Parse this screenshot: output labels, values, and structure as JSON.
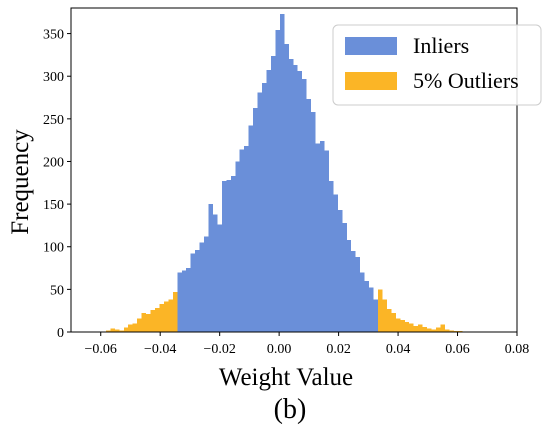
{
  "chart_data": {
    "type": "bar",
    "xlabel": "Weight Value",
    "ylabel": "Frequency",
    "caption": "(b)",
    "xlim": [
      -0.07,
      0.08
    ],
    "ylim": [
      0,
      380
    ],
    "xticks": [
      "−0.06",
      "−0.04",
      "−0.02",
      "0.00",
      "0.02",
      "0.04",
      "0.06",
      "0.08"
    ],
    "xtick_values": [
      -0.06,
      -0.04,
      -0.02,
      0.0,
      0.02,
      0.04,
      0.06,
      0.08
    ],
    "yticks": [
      "0",
      "50",
      "100",
      "150",
      "200",
      "250",
      "300",
      "350"
    ],
    "ytick_values": [
      0,
      50,
      100,
      150,
      200,
      250,
      300,
      350
    ],
    "grid": false,
    "legend_position": "top-right",
    "bin_width": 0.0015,
    "series": [
      {
        "name": "Inliers",
        "color": "#6a8fd9",
        "bin_centers": [
          -0.0335,
          -0.032,
          -0.0305,
          -0.029,
          -0.0275,
          -0.026,
          -0.0245,
          -0.023,
          -0.0215,
          -0.02,
          -0.0185,
          -0.017,
          -0.0155,
          -0.014,
          -0.0125,
          -0.011,
          -0.0095,
          -0.008,
          -0.0065,
          -0.005,
          -0.0035,
          -0.002,
          -0.0005,
          0.001,
          0.0025,
          0.004,
          0.0055,
          0.007,
          0.0085,
          0.01,
          0.0115,
          0.013,
          0.0145,
          0.016,
          0.0175,
          0.019,
          0.0205,
          0.022,
          0.0235,
          0.025,
          0.0265,
          0.028,
          0.0295,
          0.031,
          0.0325
        ],
        "values": [
          70,
          72,
          75,
          92,
          96,
          105,
          112,
          150,
          138,
          126,
          177,
          178,
          183,
          200,
          214,
          218,
          242,
          263,
          281,
          292,
          307,
          324,
          354,
          373,
          338,
          320,
          313,
          306,
          297,
          273,
          258,
          221,
          224,
          213,
          177,
          161,
          143,
          128,
          108,
          95,
          88,
          70,
          60,
          52,
          38
        ]
      },
      {
        "name": "5% Outliers",
        "color": "#fbb526",
        "bin_centers": [
          -0.0575,
          -0.056,
          -0.0545,
          -0.053,
          -0.0515,
          -0.05,
          -0.0485,
          -0.047,
          -0.0455,
          -0.044,
          -0.0425,
          -0.041,
          -0.0395,
          -0.038,
          -0.0365,
          -0.035,
          0.034,
          0.0355,
          0.037,
          0.0385,
          0.04,
          0.0415,
          0.043,
          0.0445,
          0.046,
          0.0475,
          0.049,
          0.0505,
          0.052,
          0.0535,
          0.055,
          0.0565,
          0.058,
          0.0595,
          0.061
        ],
        "values": [
          2,
          4,
          3,
          2,
          5,
          9,
          10,
          16,
          22,
          21,
          26,
          28,
          33,
          36,
          38,
          47,
          50,
          38,
          27,
          22,
          16,
          14,
          12,
          10,
          7,
          9,
          6,
          4,
          3,
          5,
          9,
          3,
          2,
          1,
          1
        ]
      }
    ]
  }
}
